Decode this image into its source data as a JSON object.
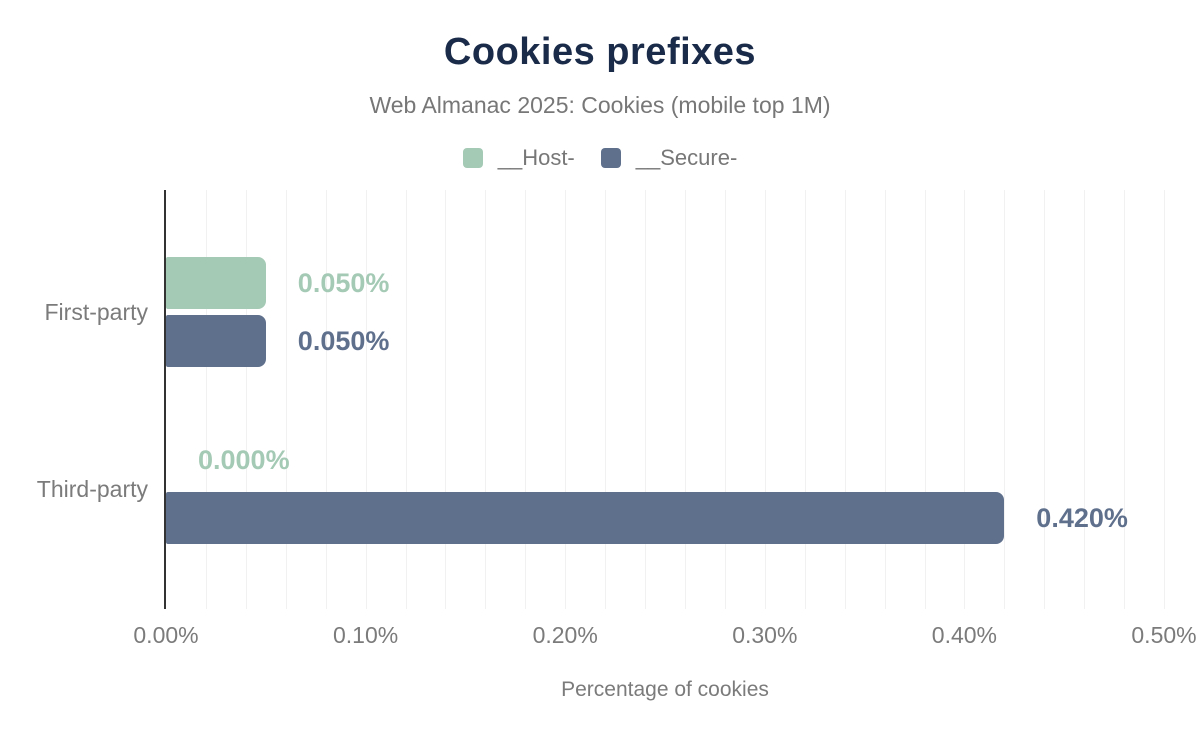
{
  "title": "Cookies prefixes",
  "subtitle": "Web Almanac 2025: Cookies (mobile top 1M)",
  "chart_data": {
    "type": "bar",
    "orientation": "horizontal",
    "title": "Cookies prefixes",
    "subtitle": "Web Almanac 2025: Cookies (mobile top 1M)",
    "xlabel": "Percentage of cookies",
    "ylabel": "",
    "categories": [
      "First-party",
      "Third-party"
    ],
    "series": [
      {
        "name": "__Host-",
        "color": "#a4c9b4",
        "values": [
          0.05,
          0.0
        ],
        "value_labels": [
          "0.050%",
          "0.000%"
        ]
      },
      {
        "name": "__Secure-",
        "color": "#5f708d",
        "values": [
          0.05,
          0.42
        ],
        "value_labels": [
          "0.050%",
          "0.420%"
        ]
      }
    ],
    "xlim": [
      0,
      0.5
    ],
    "x_tick_values": [
      0,
      0.1,
      0.2,
      0.3,
      0.4,
      0.5
    ],
    "x_tick_labels": [
      "0.00%",
      "0.10%",
      "0.20%",
      "0.30%",
      "0.40%",
      "0.50%"
    ],
    "minor_grid_step": 0.02,
    "grid": "vertical-minor-only",
    "legend_position": "top",
    "value_unit": "% of cookies"
  },
  "colors": {
    "background": "#ffffff",
    "title_navy": "#1a2b49",
    "text_gray": "#7b7b7b",
    "host_green": "#a4c9b4",
    "secure_blue": "#5f708d",
    "gridline": "#f1f1f1",
    "axis_line": "#333333"
  }
}
